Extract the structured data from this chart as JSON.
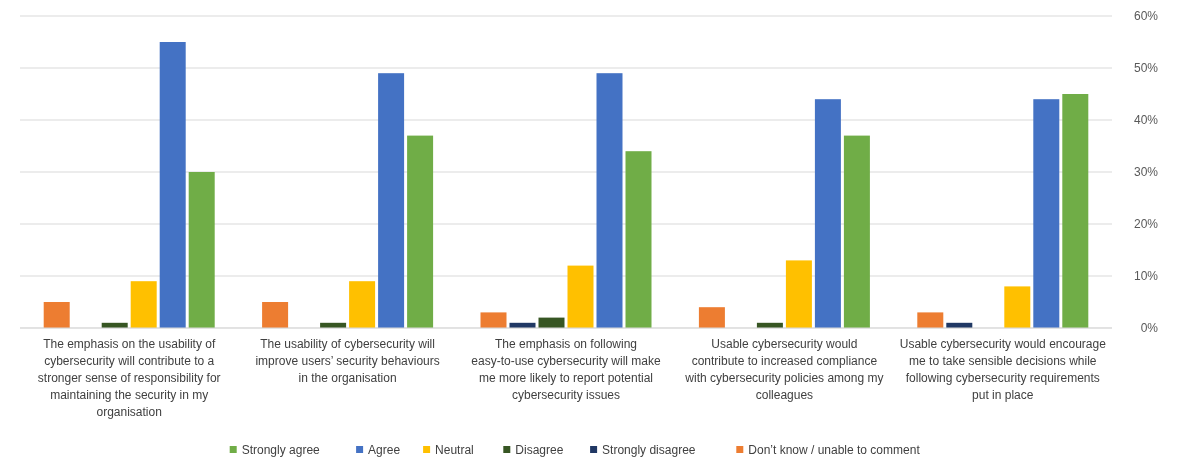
{
  "chart_data": {
    "type": "bar",
    "categories": [
      "The emphasis on the usability of cybersecurity will contribute to a stronger sense of responsibility for maintaining the security in my organisation",
      "The usability of cybersecurity will improve users’ security behaviours in the organisation",
      "The emphasis on following easy-to-use cybersecurity will make me more likely to report potential cybersecurity issues",
      "Usable cybersecurity would contribute to increased compliance with cybersecurity policies among my colleagues",
      "Usable cybersecurity would encourage me to take sensible decisions while following cybersecurity requirements put in place"
    ],
    "series": [
      {
        "name": "Strongly agree",
        "color": "#70ad47",
        "values": [
          30,
          37,
          34,
          37,
          45
        ]
      },
      {
        "name": "Agree",
        "color": "#4472c4",
        "values": [
          55,
          49,
          49,
          44,
          44
        ]
      },
      {
        "name": "Neutral",
        "color": "#ffc000",
        "values": [
          9,
          9,
          12,
          13,
          8
        ]
      },
      {
        "name": "Disagree",
        "color": "#375623",
        "values": [
          1,
          1,
          2,
          1,
          0
        ]
      },
      {
        "name": "Strongly disagree",
        "color": "#203864",
        "values": [
          0,
          0,
          1,
          0,
          1
        ]
      },
      {
        "name": "Don’t know / unable to comment",
        "color": "#ed7d31",
        "values": [
          5,
          5,
          3,
          4,
          3
        ]
      }
    ],
    "ylim": [
      0,
      60
    ],
    "yticks": [
      {
        "value": 0,
        "label": "0%"
      },
      {
        "value": 10,
        "label": "10%"
      },
      {
        "value": 20,
        "label": "20%"
      },
      {
        "value": 30,
        "label": "30%"
      },
      {
        "value": 40,
        "label": "40%"
      },
      {
        "value": 50,
        "label": "50%"
      },
      {
        "value": 60,
        "label": "60%"
      }
    ],
    "grid": "y",
    "legend": "bottom"
  }
}
